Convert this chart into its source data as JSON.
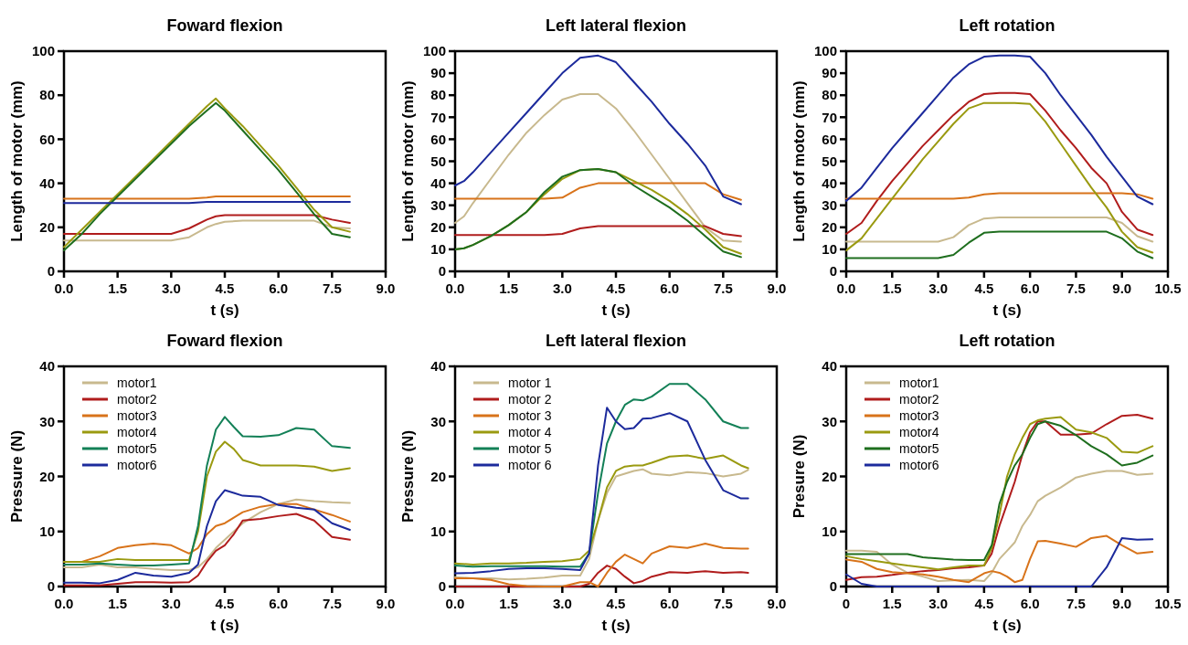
{
  "chart_data": [
    {
      "type": "line",
      "title": "Foward flexion",
      "xlabel": "t (s)",
      "ylabel": "Length of motor (mm)",
      "xlim": [
        0,
        9
      ],
      "ylim": [
        0,
        100
      ],
      "xticks": [
        {
          "value": 0,
          "label": "0.0"
        },
        1.5,
        {
          "value": 3,
          "label": "3.0"
        },
        4.5,
        {
          "value": 6,
          "label": "6.0"
        },
        7.5,
        {
          "value": 9,
          "label": "9.0"
        }
      ],
      "yticks": [
        0,
        20,
        40,
        60,
        80,
        100
      ],
      "legend": false,
      "x": [
        0,
        0.5,
        1,
        1.5,
        2,
        2.5,
        3,
        3.5,
        4,
        4.25,
        4.5,
        5,
        5.5,
        6,
        6.5,
        7,
        7.5,
        8
      ],
      "series": [
        {
          "color": "#c8b98e",
          "values": [
            14,
            14,
            14,
            14,
            14,
            14,
            14,
            15.5,
            20,
            21.5,
            22.5,
            23,
            23,
            23,
            23,
            23,
            20,
            19.5
          ]
        },
        {
          "color": "#b01c1c",
          "values": [
            17,
            17,
            17,
            17,
            17,
            17,
            17,
            19.5,
            23.5,
            25,
            25.5,
            25.5,
            25.5,
            25.5,
            25.5,
            25.5,
            23.5,
            22
          ]
        },
        {
          "color": "#d8731a",
          "values": [
            33,
            33,
            33,
            33,
            33,
            33,
            33,
            33,
            33.5,
            34,
            34,
            34,
            34,
            34,
            34,
            34,
            34,
            34
          ]
        },
        {
          "color": "#9a9a10",
          "values": [
            11,
            19,
            27,
            35,
            43,
            51,
            59,
            67,
            75,
            78.5,
            74,
            66,
            57,
            48,
            38,
            28,
            20,
            18
          ]
        },
        {
          "color": "#1e6e1e",
          "values": [
            9.5,
            17,
            26,
            34,
            42,
            50,
            58,
            66,
            73,
            76.5,
            73,
            64,
            55,
            46,
            36,
            26,
            17,
            15.5
          ]
        },
        {
          "color": "#1c2a9c",
          "values": [
            31,
            31,
            31,
            31,
            31,
            31,
            31,
            31,
            31.5,
            31.5,
            31.5,
            31.5,
            31.5,
            31.5,
            31.5,
            31.5,
            31.5,
            31.5
          ]
        }
      ]
    },
    {
      "type": "line",
      "title": "Left lateral flexion",
      "xlabel": "t (s)",
      "ylabel": "Length of motor (mm)",
      "xlim": [
        0,
        9
      ],
      "ylim": [
        0,
        100
      ],
      "xticks": [
        {
          "value": 0,
          "label": "0.0"
        },
        1.5,
        {
          "value": 3,
          "label": "3.0"
        },
        4.5,
        {
          "value": 6,
          "label": "6.0"
        },
        7.5,
        {
          "value": 9,
          "label": "9.0"
        }
      ],
      "yticks": [
        0,
        10,
        20,
        30,
        40,
        50,
        60,
        70,
        80,
        90,
        100
      ],
      "legend": false,
      "x": [
        0,
        0.25,
        0.5,
        1,
        1.5,
        2,
        2.5,
        3,
        3.5,
        4,
        4.5,
        5,
        5.5,
        6,
        6.5,
        7,
        7.5,
        8
      ],
      "series": [
        {
          "color": "#c8b98e",
          "values": [
            22,
            25,
            31,
            42,
            53,
            63,
            71,
            78,
            80.5,
            80.5,
            74,
            64,
            53,
            42,
            31,
            20,
            14,
            13.5
          ]
        },
        {
          "color": "#b01c1c",
          "values": [
            16.5,
            16.5,
            16.5,
            16.5,
            16.5,
            16.5,
            16.5,
            17,
            19.5,
            20.5,
            20.5,
            20.5,
            20.5,
            20.5,
            20.5,
            20.5,
            17,
            16
          ]
        },
        {
          "color": "#d8731a",
          "values": [
            33,
            33,
            33,
            33,
            33,
            33,
            33,
            33.5,
            38,
            40,
            40,
            40,
            40,
            40,
            40,
            40,
            35,
            32.5
          ]
        },
        {
          "color": "#9a9a10",
          "values": [
            10,
            10.5,
            12,
            16,
            21,
            27,
            35,
            42,
            46,
            46.5,
            45,
            41,
            37,
            32,
            26,
            19,
            11,
            8
          ]
        },
        {
          "color": "#1e6e1e",
          "values": [
            10,
            10.5,
            12,
            16,
            21,
            27,
            36,
            43,
            46,
            46.5,
            45,
            39,
            34,
            29,
            23,
            16,
            9,
            6.5
          ]
        },
        {
          "color": "#1c2a9c",
          "values": [
            39,
            41,
            45,
            54,
            63,
            72,
            81,
            90,
            97,
            98,
            95,
            86,
            77,
            67,
            58,
            48,
            34,
            30.5
          ]
        }
      ]
    },
    {
      "type": "line",
      "title": "Left rotation",
      "xlabel": "t (s)",
      "ylabel": "Length of motor (mm)",
      "xlim": [
        0,
        10.5
      ],
      "ylim": [
        0,
        100
      ],
      "xticks": [
        {
          "value": 0,
          "label": "0.0"
        },
        1.5,
        {
          "value": 3,
          "label": "3.0"
        },
        4.5,
        {
          "value": 6,
          "label": "6.0"
        },
        7.5,
        {
          "value": 9,
          "label": "9.0"
        },
        10.5
      ],
      "yticks": [
        0,
        10,
        20,
        30,
        40,
        50,
        60,
        70,
        80,
        90,
        100
      ],
      "legend": false,
      "x": [
        0,
        0.5,
        1,
        1.5,
        2,
        2.5,
        3,
        3.5,
        4,
        4.5,
        5,
        5.5,
        6,
        6.5,
        7,
        7.5,
        8,
        8.5,
        9,
        9.5,
        10
      ],
      "series": [
        {
          "color": "#c8b98e",
          "values": [
            13.5,
            13.5,
            13.5,
            13.5,
            13.5,
            13.5,
            13.5,
            15.5,
            21,
            24,
            24.5,
            24.5,
            24.5,
            24.5,
            24.5,
            24.5,
            24.5,
            24.5,
            22,
            16,
            13.5
          ]
        },
        {
          "color": "#b01c1c",
          "values": [
            17,
            22,
            32,
            41,
            49,
            57,
            64,
            71,
            77,
            80.5,
            81,
            81,
            80.5,
            73,
            64,
            56,
            47,
            40,
            27,
            19,
            16.5
          ]
        },
        {
          "color": "#d8731a",
          "values": [
            33,
            33,
            33,
            33,
            33,
            33,
            33,
            33,
            33.5,
            35,
            35.5,
            35.5,
            35.5,
            35.5,
            35.5,
            35.5,
            35.5,
            35.5,
            35.5,
            35,
            33
          ]
        },
        {
          "color": "#9a9a10",
          "values": [
            9.5,
            15,
            24,
            33,
            42,
            51,
            59,
            67,
            74,
            76.5,
            76.5,
            76.5,
            76,
            68,
            58,
            48,
            38,
            29,
            18,
            11,
            8.5
          ]
        },
        {
          "color": "#1e6e1e",
          "values": [
            6,
            6,
            6,
            6,
            6,
            6,
            6,
            7.5,
            13,
            17.5,
            18,
            18,
            18,
            18,
            18,
            18,
            18,
            18,
            15,
            9,
            6
          ]
        },
        {
          "color": "#1c2a9c",
          "values": [
            32,
            38,
            47,
            56,
            64,
            72,
            80,
            88,
            94,
            97.5,
            98,
            98,
            97.5,
            90,
            80,
            71,
            62,
            52,
            43,
            34,
            30.5
          ]
        }
      ]
    },
    {
      "type": "line",
      "title": "Foward flexion",
      "xlabel": "t (s)",
      "ylabel": "Pressure (N)",
      "xlim": [
        0,
        9
      ],
      "ylim": [
        0,
        40
      ],
      "xticks": [
        {
          "value": 0,
          "label": "0.0"
        },
        1.5,
        {
          "value": 3,
          "label": "3.0"
        },
        4.5,
        {
          "value": 6,
          "label": "6.0"
        },
        7.5,
        {
          "value": 9,
          "label": "9.0"
        }
      ],
      "yticks": [
        0,
        10,
        20,
        30,
        40
      ],
      "legend": "top left",
      "x": [
        0,
        0.5,
        1,
        1.5,
        2,
        2.5,
        3,
        3.5,
        3.75,
        4,
        4.25,
        4.5,
        4.75,
        5,
        5.5,
        6,
        6.5,
        7,
        7.5,
        8
      ],
      "series": [
        {
          "name": "motor1",
          "color": "#c8b98e",
          "values": [
            3.5,
            3.5,
            4,
            3.5,
            3.5,
            3.2,
            3,
            3,
            3.5,
            5,
            7,
            8.5,
            10,
            11.5,
            13.5,
            15,
            15.8,
            15.5,
            15.3,
            15.2
          ]
        },
        {
          "name": "motor2",
          "color": "#b01c1c",
          "values": [
            0.2,
            0.2,
            0.2,
            0.5,
            0.8,
            0.8,
            0.7,
            0.8,
            2,
            4.5,
            6.5,
            7.5,
            9.5,
            12,
            12.3,
            12.8,
            13.2,
            12,
            9,
            8.5
          ]
        },
        {
          "name": "motor3",
          "color": "#d8731a",
          "values": [
            4.5,
            4.5,
            5.5,
            7,
            7.5,
            7.8,
            7.5,
            6,
            7,
            9.5,
            11,
            11.5,
            12.5,
            13.5,
            14.5,
            15,
            15,
            14,
            13,
            11.8
          ]
        },
        {
          "name": "motor4",
          "color": "#9a9a10",
          "values": [
            4.5,
            4.5,
            4.5,
            5,
            4.8,
            4.8,
            4.8,
            4.8,
            10,
            20,
            24.5,
            26.3,
            25,
            23,
            22,
            22,
            22,
            21.8,
            21,
            21.5
          ]
        },
        {
          "name": "motor5",
          "color": "#138057",
          "values": [
            4,
            4,
            4.2,
            4,
            3.8,
            3.8,
            4,
            4.2,
            11,
            22,
            28.5,
            30.8,
            29,
            27.3,
            27.2,
            27.5,
            28.8,
            28.5,
            25.5,
            25.2
          ]
        },
        {
          "name": "motor6",
          "color": "#1c2a9c",
          "values": [
            0.7,
            0.7,
            0.6,
            1.2,
            2.5,
            2,
            1.8,
            2.5,
            4,
            11,
            15.5,
            17.5,
            17,
            16.5,
            16.3,
            14.8,
            14.3,
            14,
            11.5,
            10.3
          ]
        }
      ]
    },
    {
      "type": "line",
      "title": "Left lateral flexion",
      "xlabel": "t (s)",
      "ylabel": "Pressure (N)",
      "xlim": [
        0,
        9
      ],
      "ylim": [
        0,
        40
      ],
      "xticks": [
        {
          "value": 0,
          "label": "0.0"
        },
        1.5,
        {
          "value": 3,
          "label": "3.0"
        },
        4.5,
        {
          "value": 6,
          "label": "6.0"
        },
        7.5,
        {
          "value": 9,
          "label": "9.0"
        }
      ],
      "yticks": [
        0,
        10,
        20,
        30,
        40
      ],
      "legend": "top left",
      "x": [
        0,
        0.5,
        1,
        1.5,
        2,
        2.5,
        3,
        3.5,
        3.75,
        4,
        4.25,
        4.5,
        4.75,
        5,
        5.25,
        5.5,
        6,
        6.5,
        7,
        7.5,
        8,
        8.2
      ],
      "series": [
        {
          "name": "motor 1",
          "color": "#c8b98e",
          "values": [
            1.7,
            1.5,
            1.5,
            1.3,
            1.4,
            1.6,
            2,
            2,
            5,
            12,
            17,
            20,
            20.5,
            21,
            21.3,
            20.5,
            20.2,
            20.8,
            20.6,
            20,
            20.5,
            21.2
          ]
        },
        {
          "name": "motor 2",
          "color": "#b01c1c",
          "values": [
            0,
            0,
            0,
            0,
            0,
            0,
            0,
            0,
            0.5,
            2.5,
            3.8,
            3.2,
            1.8,
            0.6,
            1,
            1.8,
            2.6,
            2.5,
            2.8,
            2.5,
            2.6,
            2.5
          ]
        },
        {
          "name": "motor 3",
          "color": "#d8731a",
          "values": [
            1.5,
            1.5,
            1.2,
            0.4,
            0.1,
            0,
            0,
            0.8,
            0.8,
            0,
            2.5,
            4.5,
            5.8,
            5,
            4.2,
            6,
            7.3,
            7,
            7.8,
            7,
            6.9,
            6.9
          ]
        },
        {
          "name": "motor 4",
          "color": "#9a9a10",
          "values": [
            4.2,
            4,
            4.2,
            4.2,
            4.3,
            4.5,
            4.6,
            5,
            6.5,
            12,
            18,
            21,
            21.8,
            22,
            22,
            22.5,
            23.6,
            23.8,
            23.2,
            23.8,
            22,
            21.5
          ]
        },
        {
          "name": "motor 5",
          "color": "#138057",
          "values": [
            3.8,
            3.6,
            3.7,
            3.7,
            3.7,
            3.7,
            3.6,
            3.6,
            6,
            17,
            26,
            30,
            33,
            34,
            33.8,
            34.5,
            36.8,
            36.8,
            34,
            30,
            28.8,
            28.8
          ]
        },
        {
          "name": "motor 6",
          "color": "#1c2a9c",
          "values": [
            2.4,
            2.5,
            2.8,
            3.2,
            3.3,
            3.3,
            3.2,
            3,
            6,
            22,
            32.5,
            30,
            28.6,
            28.8,
            30.5,
            30.6,
            31.5,
            30,
            23,
            17.5,
            16,
            16
          ]
        }
      ]
    },
    {
      "type": "line",
      "title": "Left rotation",
      "xlabel": "t (s)",
      "ylabel": "Presure (N)",
      "xlim": [
        0,
        10.5
      ],
      "ylim": [
        0,
        40
      ],
      "xticks": [
        0,
        1.5,
        {
          "value": 3,
          "label": "3.0"
        },
        4.5,
        {
          "value": 6,
          "label": "6.0"
        },
        7.5,
        {
          "value": 9,
          "label": "9.0"
        },
        10.5
      ],
      "yticks": [
        0,
        10,
        20,
        30,
        40
      ],
      "legend": "top left",
      "x": [
        0,
        0.5,
        1,
        1.5,
        2,
        2.5,
        3,
        3.5,
        4,
        4.5,
        4.75,
        5,
        5.25,
        5.5,
        5.75,
        6,
        6.25,
        6.5,
        7,
        7.5,
        8,
        8.5,
        9,
        9.5,
        10
      ],
      "series": [
        {
          "name": "motor1",
          "color": "#c8b98e",
          "values": [
            6.5,
            6.5,
            6.3,
            4,
            2.5,
            1.8,
            1,
            1.1,
            1.2,
            1,
            2.5,
            5,
            6.5,
            8,
            11,
            13,
            15.5,
            16.5,
            18,
            19.8,
            20.5,
            21,
            21,
            20.3,
            20.5
          ]
        },
        {
          "name": "motor2",
          "color": "#b01c1c",
          "values": [
            1.2,
            1.7,
            1.8,
            2.1,
            2.5,
            2.8,
            3,
            3.3,
            3.5,
            3.8,
            6,
            11,
            15,
            19,
            24,
            28,
            30,
            30,
            27.6,
            27.6,
            27.8,
            29.5,
            31,
            31.2,
            30.5
          ]
        },
        {
          "name": "motor3",
          "color": "#d8731a",
          "values": [
            4.9,
            4.5,
            3.2,
            2.6,
            2.4,
            2.2,
            1.8,
            1.2,
            0.8,
            2.4,
            2.8,
            2.5,
            1.8,
            0.8,
            1.2,
            5,
            8.2,
            8.3,
            7.8,
            7.2,
            8.8,
            9.2,
            7.5,
            6,
            6.3
          ]
        },
        {
          "name": "motor4",
          "color": "#9a9a10",
          "values": [
            5.5,
            5,
            4.6,
            4.2,
            3.8,
            3.5,
            3.1,
            3.5,
            3.8,
            3.8,
            7,
            13,
            20,
            24,
            27,
            29.5,
            30.2,
            30.5,
            30.8,
            28.5,
            28,
            27,
            24.5,
            24.3,
            25.5
          ]
        },
        {
          "name": "motor5",
          "color": "#1e6e1e",
          "values": [
            5.9,
            5.9,
            5.9,
            5.9,
            5.9,
            5.3,
            5.1,
            4.9,
            4.8,
            4.8,
            7.5,
            15,
            19,
            22,
            24,
            27,
            29.5,
            30,
            29.2,
            27.5,
            25.5,
            24,
            22,
            22.5,
            23.8
          ]
        },
        {
          "name": "motor6",
          "color": "#1c2a9c",
          "values": [
            2.2,
            0.5,
            0,
            0,
            0,
            0,
            0,
            0,
            0,
            0,
            0,
            0,
            0,
            0,
            0,
            0,
            0,
            0,
            0,
            0,
            0,
            3.5,
            8.8,
            8.5,
            8.6
          ]
        }
      ]
    }
  ]
}
